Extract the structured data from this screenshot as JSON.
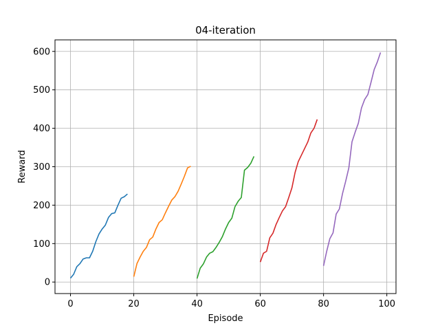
{
  "chart_data": {
    "type": "line",
    "title": "04-iteration",
    "xlabel": "Episode",
    "ylabel": "Reward",
    "xlim": [
      -4.9,
      102.9
    ],
    "ylim": [
      -30,
      630
    ],
    "xticks": [
      0,
      20,
      40,
      60,
      80,
      100
    ],
    "yticks": [
      0,
      100,
      200,
      300,
      400,
      500,
      600
    ],
    "grid": true,
    "series": [
      {
        "color": "#1f77b4",
        "x": [
          0,
          1,
          2,
          3,
          4,
          5,
          6,
          7,
          8,
          9,
          10,
          11,
          12,
          13,
          14,
          15,
          16,
          17,
          18
        ],
        "y": [
          10,
          20,
          40,
          48,
          60,
          63,
          63,
          80,
          105,
          125,
          138,
          148,
          168,
          178,
          180,
          200,
          218,
          222,
          229
        ]
      },
      {
        "color": "#ff7f0e",
        "x": [
          20,
          21,
          22,
          23,
          24,
          25,
          26,
          27,
          28,
          29,
          30,
          31,
          32,
          33,
          34,
          35,
          36,
          37,
          38
        ],
        "y": [
          14,
          48,
          65,
          80,
          90,
          110,
          117,
          138,
          155,
          162,
          180,
          197,
          213,
          222,
          236,
          255,
          275,
          297,
          301
        ]
      },
      {
        "color": "#2ca02c",
        "x": [
          40,
          41,
          42,
          43,
          44,
          45,
          46,
          47,
          48,
          49,
          50,
          51,
          52,
          53,
          54,
          55,
          56,
          57,
          58
        ],
        "y": [
          9,
          36,
          47,
          65,
          75,
          79,
          90,
          103,
          118,
          138,
          155,
          166,
          196,
          210,
          220,
          291,
          298,
          309,
          327
        ]
      },
      {
        "color": "#d62728",
        "x": [
          60,
          61,
          62,
          63,
          64,
          65,
          66,
          67,
          68,
          69,
          70,
          71,
          72,
          73,
          74,
          75,
          76,
          77,
          78
        ],
        "y": [
          52,
          75,
          80,
          115,
          127,
          150,
          168,
          185,
          196,
          220,
          245,
          285,
          313,
          330,
          347,
          364,
          388,
          400,
          423
        ]
      },
      {
        "color": "#9467bd",
        "x": [
          80,
          81,
          82,
          83,
          84,
          85,
          86,
          87,
          88,
          89,
          90,
          91,
          92,
          93,
          94,
          95,
          96,
          97,
          98
        ],
        "y": [
          42,
          80,
          113,
          128,
          177,
          190,
          230,
          262,
          297,
          365,
          390,
          413,
          453,
          475,
          488,
          520,
          553,
          573,
          597
        ]
      }
    ]
  }
}
